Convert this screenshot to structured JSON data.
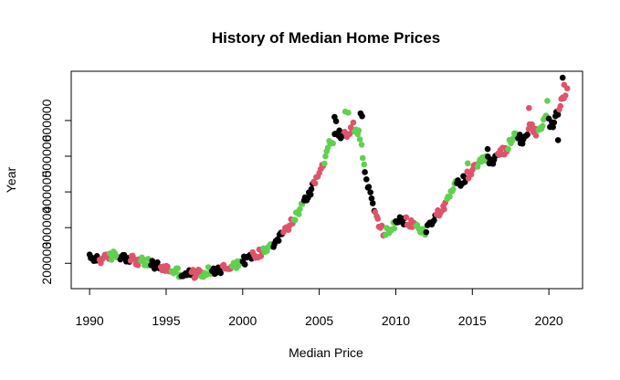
{
  "chart_data": {
    "type": "scatter",
    "title": "History of Median Home Prices",
    "xlabel": "Median Price",
    "ylabel": "Year",
    "xlim": [
      1988.8,
      2022.2
    ],
    "ylim": [
      129000,
      738000
    ],
    "x_ticks": [
      1990,
      1995,
      2000,
      2005,
      2010,
      2015,
      2020
    ],
    "y_ticks": [
      200000,
      300000,
      400000,
      500000,
      600000
    ],
    "colors": {
      "black": "#000000",
      "red": "#DF536B",
      "green": "#61D04F"
    },
    "cycle": [
      "black",
      "red",
      "green"
    ],
    "waypoints": [
      [
        1990.0,
        213000
      ],
      [
        1991.0,
        212000
      ],
      [
        1991.5,
        222000
      ],
      [
        1992.3,
        220000
      ],
      [
        1993.0,
        208000
      ],
      [
        1994.0,
        198000
      ],
      [
        1995.0,
        185000
      ],
      [
        1996.0,
        172000
      ],
      [
        1997.0,
        170000
      ],
      [
        1998.0,
        178000
      ],
      [
        1999.0,
        190000
      ],
      [
        2000.0,
        205000
      ],
      [
        2000.5,
        218000
      ],
      [
        2001.0,
        225000
      ],
      [
        2001.5,
        242000
      ],
      [
        2002.0,
        258000
      ],
      [
        2002.5,
        280000
      ],
      [
        2003.0,
        302000
      ],
      [
        2003.5,
        335000
      ],
      [
        2004.0,
        368000
      ],
      [
        2004.5,
        410000
      ],
      [
        2005.0,
        455000
      ],
      [
        2005.4,
        500000
      ],
      [
        2005.8,
        545000
      ],
      [
        2006.3,
        560000
      ],
      [
        2006.8,
        565000
      ],
      [
        2007.2,
        585000
      ],
      [
        2007.6,
        565000
      ],
      [
        2007.9,
        480000
      ],
      [
        2008.3,
        395000
      ],
      [
        2008.7,
        330000
      ],
      [
        2009.2,
        285000
      ],
      [
        2009.8,
        300000
      ],
      [
        2010.3,
        320000
      ],
      [
        2010.8,
        315000
      ],
      [
        2011.3,
        305000
      ],
      [
        2011.8,
        285000
      ],
      [
        2012.3,
        310000
      ],
      [
        2012.8,
        345000
      ],
      [
        2013.3,
        365000
      ],
      [
        2013.8,
        415000
      ],
      [
        2014.3,
        430000
      ],
      [
        2014.8,
        450000
      ],
      [
        2015.3,
        470000
      ],
      [
        2015.8,
        490000
      ],
      [
        2016.3,
        485000
      ],
      [
        2016.8,
        505000
      ],
      [
        2017.3,
        525000
      ],
      [
        2017.8,
        560000
      ],
      [
        2018.3,
        545000
      ],
      [
        2018.8,
        590000
      ],
      [
        2019.3,
        560000
      ],
      [
        2019.8,
        605000
      ],
      [
        2020.3,
        585000
      ],
      [
        2020.8,
        650000
      ],
      [
        2021.1,
        675000
      ]
    ],
    "outliers": [
      [
        2006.0,
        610000,
        "black"
      ],
      [
        2006.1,
        598000,
        "black"
      ],
      [
        2006.7,
        625000,
        "green"
      ],
      [
        2006.9,
        622000,
        "green"
      ],
      [
        2007.7,
        620000,
        "black"
      ],
      [
        2007.8,
        612000,
        "black"
      ],
      [
        2014.7,
        480000,
        "green"
      ],
      [
        2016.0,
        520000,
        "black"
      ],
      [
        2018.7,
        635000,
        "red"
      ],
      [
        2019.9,
        655000,
        "green"
      ],
      [
        2020.6,
        545000,
        "black"
      ],
      [
        2020.9,
        720000,
        "black"
      ],
      [
        2021.0,
        700000,
        "red"
      ],
      [
        2021.2,
        690000,
        "red"
      ]
    ]
  }
}
